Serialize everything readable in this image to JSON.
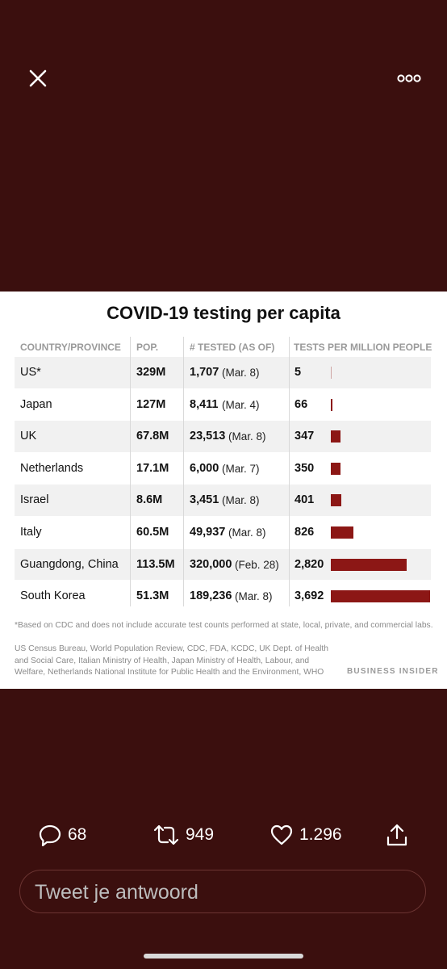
{
  "icons": {
    "close": "close-icon",
    "more": "more-icon",
    "reply": "reply-icon",
    "retweet": "retweet-icon",
    "like": "heart-icon",
    "share": "share-icon"
  },
  "colors": {
    "background": "#3b0f0e",
    "bar": "#8c1715",
    "card": "#ffffff"
  },
  "chart": {
    "title": "COVID-19 testing per capita",
    "headers": {
      "country": "COUNTRY/PROVINCE",
      "pop": "POP.",
      "tested": "# TESTED (AS OF)",
      "per_million": "TESTS PER MILLION PEOPLE"
    },
    "rows": [
      {
        "country": "US*",
        "pop": "329M",
        "tested": "1,707",
        "date": "(Mar. 8)",
        "per_million": "5"
      },
      {
        "country": "Japan",
        "pop": "127M",
        "tested": "8,411",
        "date": "(Mar. 4)",
        "per_million": "66"
      },
      {
        "country": "UK",
        "pop": "67.8M",
        "tested": "23,513",
        "date": "(Mar. 8)",
        "per_million": "347"
      },
      {
        "country": "Netherlands",
        "pop": "17.1M",
        "tested": "6,000",
        "date": "(Mar. 7)",
        "per_million": "350"
      },
      {
        "country": "Israel",
        "pop": "8.6M",
        "tested": "3,451",
        "date": "(Mar. 8)",
        "per_million": "401"
      },
      {
        "country": "Italy",
        "pop": "60.5M",
        "tested": "49,937",
        "date": "(Mar. 8)",
        "per_million": "826"
      },
      {
        "country": "Guangdong, China",
        "pop": "113.5M",
        "tested": "320,000",
        "date": "(Feb. 28)",
        "per_million": "2,820"
      },
      {
        "country": "South Korea",
        "pop": "51.3M",
        "tested": "189,236",
        "date": "(Mar. 8)",
        "per_million": "3,692"
      }
    ],
    "footnote": "*Based on CDC and does not include accurate test counts performed at state, local, private, and commercial labs.",
    "sources": "US Census Bureau, World Population Review, CDC, FDA, KCDC, UK Dept. of Health and Social Care, Italian Ministry of Health, Japan Ministry of Health, Labour, and Welfare, Netherlands National Institute for Public Health and the Environment, WHO",
    "brand": "BUSINESS INSIDER"
  },
  "chart_data": {
    "type": "bar",
    "title": "COVID-19 testing per capita",
    "categories": [
      "US*",
      "Japan",
      "UK",
      "Netherlands",
      "Israel",
      "Italy",
      "Guangdong, China",
      "South Korea"
    ],
    "values": [
      5,
      66,
      347,
      350,
      401,
      826,
      2820,
      3692
    ],
    "xlabel": "TESTS PER MILLION PEOPLE",
    "ylabel": "",
    "xlim": [
      0,
      3692
    ]
  },
  "actions": {
    "replies": "68",
    "retweets": "949",
    "likes": "1.296"
  },
  "reply": {
    "placeholder": "Tweet je antwoord"
  }
}
